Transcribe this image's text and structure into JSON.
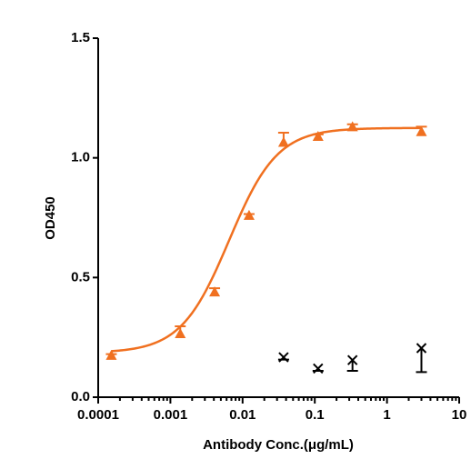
{
  "chart_data": {
    "type": "scatter",
    "xlabel": "Antibody Conc.(μg/mL)",
    "ylabel": "OD450",
    "xscale": "log",
    "xlim": [
      0.0001,
      10
    ],
    "xticks": [
      0.0001,
      0.001,
      0.01,
      0.1,
      1,
      10
    ],
    "ylim": [
      0,
      1.5
    ],
    "yticks": [
      {
        "value": 0,
        "label": "0.0"
      },
      {
        "value": 0.5,
        "label": "0.5"
      },
      {
        "value": 1,
        "label": "1.0"
      },
      {
        "value": 1.5,
        "label": "1.5"
      }
    ],
    "series": [
      {
        "color": "#f07020",
        "marker": "triangle",
        "error_direction": "up",
        "x": [
          0.000152,
          0.00137,
          0.0041,
          0.0123,
          0.037,
          0.111,
          0.333,
          3
        ],
        "values": [
          0.175,
          0.266,
          0.44,
          0.76,
          1.065,
          1.09,
          1.13,
          1.11
        ],
        "errors": [
          0.005,
          0.03,
          0.015,
          0.005,
          0.04,
          0.008,
          0.01,
          0.02
        ],
        "fit": {
          "bottom": 0.185,
          "top": 1.125,
          "ec50": 0.0065,
          "hill": 1.3
        }
      },
      {
        "color": "#000000",
        "marker": "x",
        "error_direction": "down",
        "x": [
          0.037,
          0.111,
          0.333,
          3
        ],
        "values": [
          0.167,
          0.12,
          0.155,
          0.205
        ],
        "errors": [
          0.01,
          0.01,
          0.045,
          0.1
        ]
      }
    ]
  }
}
